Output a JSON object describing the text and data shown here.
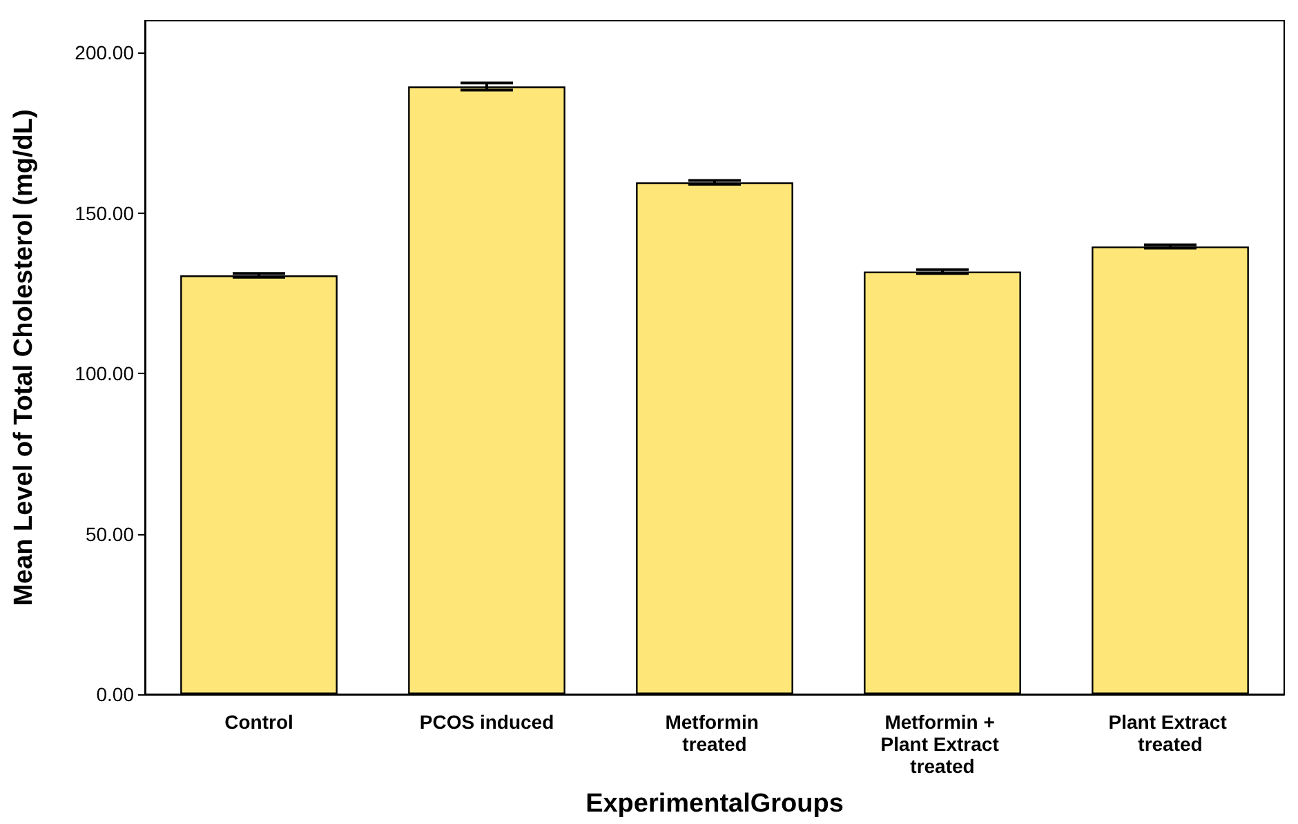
{
  "chart_data": {
    "type": "bar",
    "xlabel": "ExperimentalGroups",
    "ylabel": "Mean Level of Total Cholesterol (mg/dL)",
    "categories": [
      "Control",
      "PCOS induced",
      "Metformin treated",
      "Metformin + Plant Extract treated",
      "Plant Extract treated"
    ],
    "values": [
      130.6,
      189.5,
      159.6,
      131.8,
      139.6
    ],
    "errors": [
      0.6,
      1.1,
      0.6,
      0.6,
      0.5
    ],
    "color": "#fee679",
    "ylim": [
      0,
      210
    ],
    "yticks": [
      {
        "value": 0,
        "label": "0.00"
      },
      {
        "value": 50,
        "label": "50.00"
      },
      {
        "value": 100,
        "label": "100.00"
      },
      {
        "value": 150,
        "label": "150.00"
      },
      {
        "value": 200,
        "label": "200.00"
      }
    ],
    "grid": false
  }
}
